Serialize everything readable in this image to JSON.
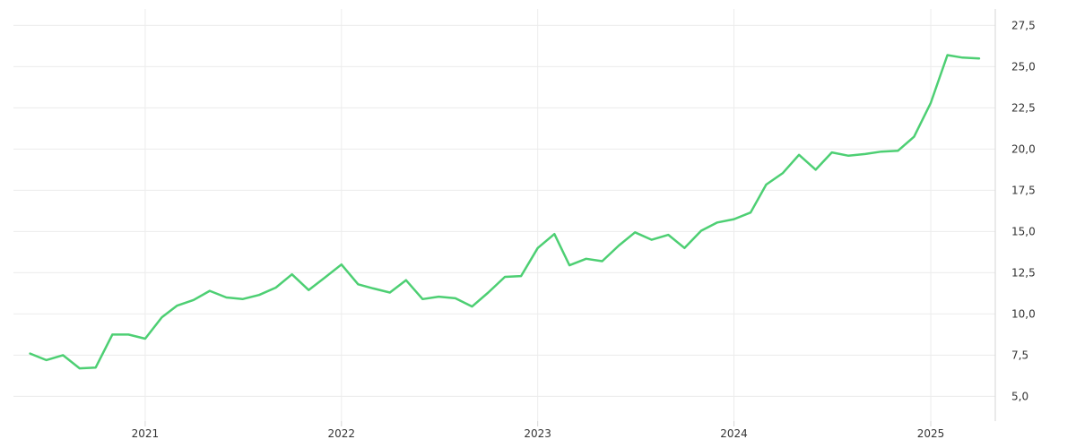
{
  "chart_data": {
    "type": "line",
    "title": "",
    "xlabel": "",
    "ylabel": "",
    "xlim": [
      "2020-05-01",
      "2025-05-01"
    ],
    "ylim": [
      3.5,
      28.5
    ],
    "grid": true,
    "legend": "none",
    "y_ticks": [
      "5,0",
      "7,5",
      "10,0",
      "12,5",
      "15,0",
      "17,5",
      "20,0",
      "22,5",
      "25,0",
      "27,5"
    ],
    "y_tick_values": [
      5,
      7.5,
      10,
      12.5,
      15,
      17.5,
      20,
      22.5,
      25,
      27.5
    ],
    "x_ticks": [
      "2021",
      "2022",
      "2023",
      "2024",
      "2025"
    ],
    "x_tick_values": [
      "2021-01-01",
      "2022-01-01",
      "2023-01-01",
      "2024-01-01",
      "2025-01-01"
    ],
    "series": [
      {
        "color": "#4dcf73",
        "points": [
          [
            "2020-06-01",
            7.6
          ],
          [
            "2020-07-01",
            7.2
          ],
          [
            "2020-08-01",
            7.5
          ],
          [
            "2020-09-01",
            6.7
          ],
          [
            "2020-10-01",
            6.75
          ],
          [
            "2020-11-01",
            8.75
          ],
          [
            "2020-12-01",
            8.75
          ],
          [
            "2021-01-01",
            8.5
          ],
          [
            "2021-02-01",
            9.8
          ],
          [
            "2021-03-01",
            10.5
          ],
          [
            "2021-04-01",
            10.85
          ],
          [
            "2021-05-01",
            11.4
          ],
          [
            "2021-06-01",
            11.0
          ],
          [
            "2021-07-01",
            10.9
          ],
          [
            "2021-08-01",
            11.15
          ],
          [
            "2021-09-01",
            11.6
          ],
          [
            "2021-10-01",
            12.4
          ],
          [
            "2021-11-01",
            11.45
          ],
          [
            "2021-12-01",
            12.2
          ],
          [
            "2022-01-01",
            13.0
          ],
          [
            "2022-02-01",
            11.8
          ],
          [
            "2022-03-01",
            11.55
          ],
          [
            "2022-04-01",
            11.3
          ],
          [
            "2022-05-01",
            12.05
          ],
          [
            "2022-06-01",
            10.9
          ],
          [
            "2022-07-01",
            11.05
          ],
          [
            "2022-08-01",
            10.95
          ],
          [
            "2022-09-01",
            10.45
          ],
          [
            "2022-10-01",
            11.3
          ],
          [
            "2022-11-01",
            12.25
          ],
          [
            "2022-12-01",
            12.3
          ],
          [
            "2023-01-01",
            14.0
          ],
          [
            "2023-02-01",
            14.85
          ],
          [
            "2023-03-01",
            12.95
          ],
          [
            "2023-04-01",
            13.35
          ],
          [
            "2023-05-01",
            13.2
          ],
          [
            "2023-06-01",
            14.15
          ],
          [
            "2023-07-01",
            14.95
          ],
          [
            "2023-08-01",
            14.5
          ],
          [
            "2023-09-01",
            14.8
          ],
          [
            "2023-10-01",
            14.0
          ],
          [
            "2023-11-01",
            15.05
          ],
          [
            "2023-12-01",
            15.55
          ],
          [
            "2024-01-01",
            15.75
          ],
          [
            "2024-02-01",
            16.15
          ],
          [
            "2024-03-01",
            17.85
          ],
          [
            "2024-04-01",
            18.55
          ],
          [
            "2024-05-01",
            19.65
          ],
          [
            "2024-06-01",
            18.75
          ],
          [
            "2024-07-01",
            19.8
          ],
          [
            "2024-08-01",
            19.6
          ],
          [
            "2024-09-01",
            19.7
          ],
          [
            "2024-10-01",
            19.85
          ],
          [
            "2024-11-01",
            19.9
          ],
          [
            "2024-12-01",
            20.75
          ],
          [
            "2025-01-01",
            22.8
          ],
          [
            "2025-02-01",
            25.7
          ],
          [
            "2025-03-01",
            25.55
          ],
          [
            "2025-04-01",
            25.5
          ]
        ]
      }
    ]
  }
}
